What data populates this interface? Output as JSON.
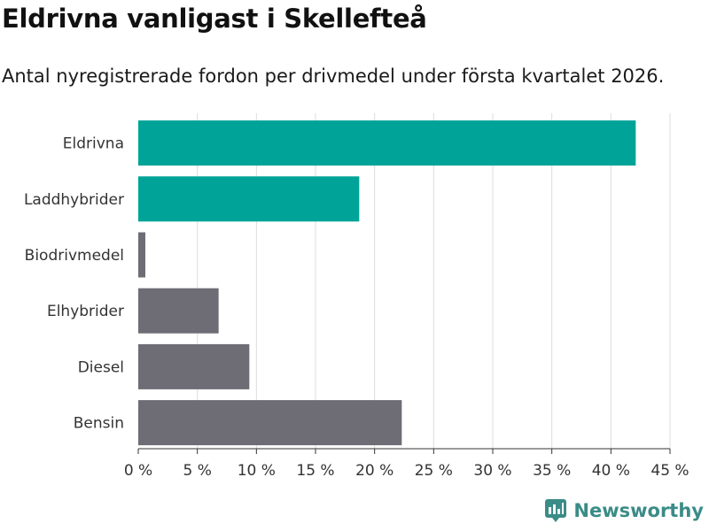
{
  "colors": {
    "highlight": "#00a398",
    "muted": "#6e6d75",
    "grid": "#dcdcdc",
    "axis": "#333333",
    "brand": "#3a8c87"
  },
  "brand": {
    "name": "Newsworthy"
  },
  "chart_data": {
    "type": "bar",
    "orientation": "horizontal",
    "title": "Eldrivna vanligast i Skellefteå",
    "subtitle": "Antal nyregistrerade fordon per drivmedel under första kvartalet 2026.",
    "xlabel": "",
    "ylabel": "",
    "categories": [
      "Eldrivna",
      "Laddhybrider",
      "Biodrivmedel",
      "Elhybrider",
      "Diesel",
      "Bensin"
    ],
    "values": [
      42.1,
      18.7,
      0.6,
      6.8,
      9.4,
      22.3
    ],
    "highlighted": [
      true,
      true,
      false,
      false,
      false,
      false
    ],
    "xlim": [
      0,
      45
    ],
    "xticks": [
      0,
      5,
      10,
      15,
      20,
      25,
      30,
      35,
      40,
      45
    ],
    "xtick_labels": [
      "0 %",
      "5 %",
      "10 %",
      "15 %",
      "20 %",
      "25 %",
      "30 %",
      "35 %",
      "40 %",
      "45 %"
    ],
    "grid": true
  }
}
